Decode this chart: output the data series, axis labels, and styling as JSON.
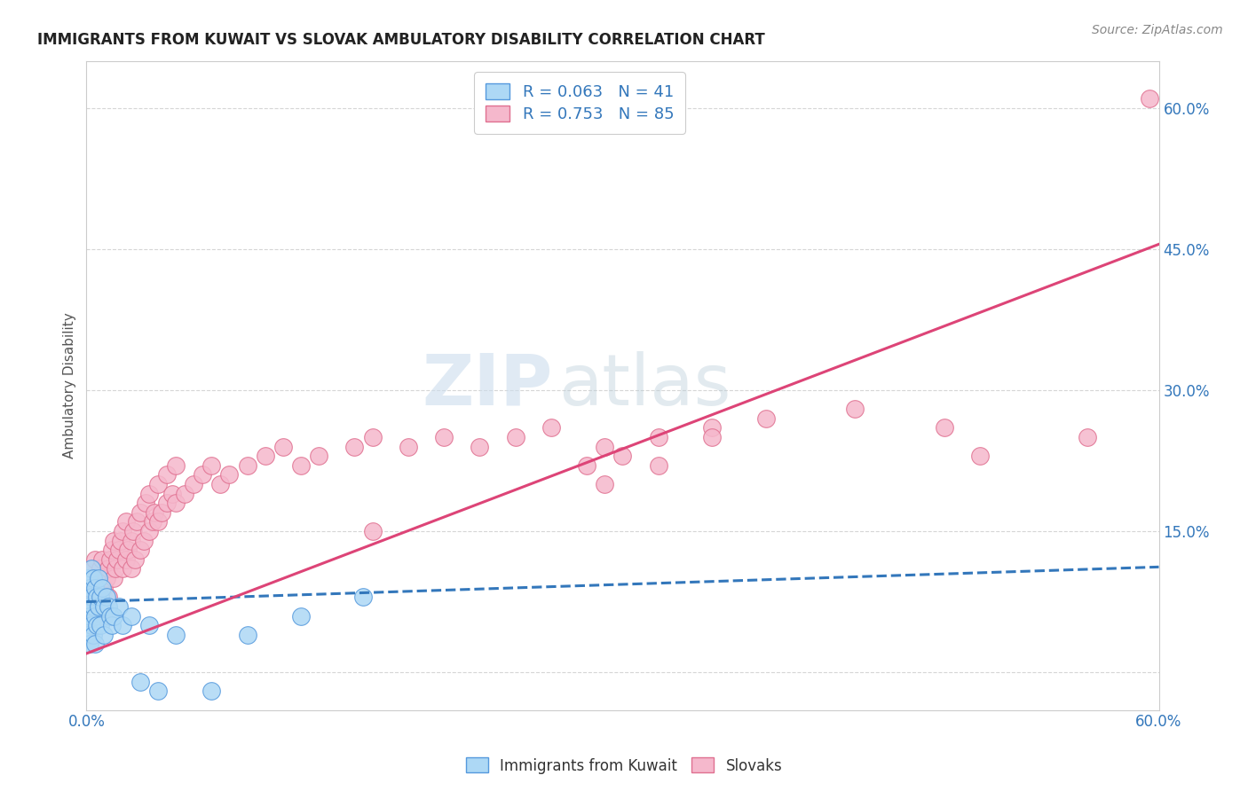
{
  "title": "IMMIGRANTS FROM KUWAIT VS SLOVAK AMBULATORY DISABILITY CORRELATION CHART",
  "source": "Source: ZipAtlas.com",
  "ylabel": "Ambulatory Disability",
  "xmin": 0.0,
  "xmax": 0.6,
  "ymin": -0.04,
  "ymax": 0.65,
  "ytick_vals": [
    0.0,
    0.15,
    0.3,
    0.45,
    0.6
  ],
  "ytick_labels": [
    "",
    "15.0%",
    "30.0%",
    "45.0%",
    "60.0%"
  ],
  "kuwait_color": "#add8f5",
  "kuwait_edge": "#5599dd",
  "slovak_color": "#f5b8cc",
  "slovak_edge": "#e07090",
  "line_kuwait_color": "#3377bb",
  "line_slovak_color": "#dd4477",
  "watermark_color": "#ccdded",
  "kuwait_line_x0": 0.0,
  "kuwait_line_y0": 0.075,
  "kuwait_line_x1": 0.6,
  "kuwait_line_y1": 0.112,
  "slovak_line_x0": 0.0,
  "slovak_line_y0": 0.02,
  "slovak_line_x1": 0.6,
  "slovak_line_y1": 0.455,
  "kuwait_points_x": [
    0.0005,
    0.001,
    0.001,
    0.001,
    0.002,
    0.002,
    0.002,
    0.003,
    0.003,
    0.003,
    0.004,
    0.004,
    0.004,
    0.005,
    0.005,
    0.005,
    0.006,
    0.006,
    0.007,
    0.007,
    0.008,
    0.008,
    0.009,
    0.01,
    0.01,
    0.011,
    0.012,
    0.013,
    0.014,
    0.015,
    0.018,
    0.02,
    0.025,
    0.03,
    0.035,
    0.04,
    0.05,
    0.07,
    0.09,
    0.12,
    0.155
  ],
  "kuwait_points_y": [
    0.07,
    0.1,
    0.07,
    0.04,
    0.09,
    0.06,
    0.03,
    0.11,
    0.08,
    0.05,
    0.1,
    0.07,
    0.04,
    0.09,
    0.06,
    0.03,
    0.08,
    0.05,
    0.1,
    0.07,
    0.08,
    0.05,
    0.09,
    0.07,
    0.04,
    0.08,
    0.07,
    0.06,
    0.05,
    0.06,
    0.07,
    0.05,
    0.06,
    -0.01,
    0.05,
    -0.02,
    0.04,
    -0.02,
    0.04,
    0.06,
    0.08
  ],
  "slovak_points_x": [
    0.001,
    0.002,
    0.003,
    0.003,
    0.004,
    0.005,
    0.005,
    0.006,
    0.007,
    0.007,
    0.008,
    0.008,
    0.009,
    0.01,
    0.01,
    0.011,
    0.012,
    0.012,
    0.013,
    0.014,
    0.015,
    0.015,
    0.016,
    0.017,
    0.018,
    0.019,
    0.02,
    0.02,
    0.022,
    0.022,
    0.023,
    0.025,
    0.025,
    0.026,
    0.027,
    0.028,
    0.03,
    0.03,
    0.032,
    0.033,
    0.035,
    0.035,
    0.037,
    0.038,
    0.04,
    0.04,
    0.042,
    0.045,
    0.045,
    0.048,
    0.05,
    0.05,
    0.055,
    0.06,
    0.065,
    0.07,
    0.075,
    0.08,
    0.09,
    0.1,
    0.11,
    0.12,
    0.13,
    0.15,
    0.16,
    0.18,
    0.2,
    0.22,
    0.24,
    0.26,
    0.29,
    0.32,
    0.35,
    0.38,
    0.28,
    0.3,
    0.35,
    0.29,
    0.32,
    0.16,
    0.43,
    0.48,
    0.5,
    0.56,
    0.595
  ],
  "slovak_points_y": [
    0.08,
    0.09,
    0.1,
    0.07,
    0.11,
    0.12,
    0.08,
    0.09,
    0.1,
    0.07,
    0.11,
    0.08,
    0.12,
    0.09,
    0.06,
    0.1,
    0.11,
    0.08,
    0.12,
    0.13,
    0.14,
    0.1,
    0.11,
    0.12,
    0.13,
    0.14,
    0.15,
    0.11,
    0.16,
    0.12,
    0.13,
    0.14,
    0.11,
    0.15,
    0.12,
    0.16,
    0.17,
    0.13,
    0.14,
    0.18,
    0.19,
    0.15,
    0.16,
    0.17,
    0.2,
    0.16,
    0.17,
    0.21,
    0.18,
    0.19,
    0.22,
    0.18,
    0.19,
    0.2,
    0.21,
    0.22,
    0.2,
    0.21,
    0.22,
    0.23,
    0.24,
    0.22,
    0.23,
    0.24,
    0.25,
    0.24,
    0.25,
    0.24,
    0.25,
    0.26,
    0.24,
    0.25,
    0.26,
    0.27,
    0.22,
    0.23,
    0.25,
    0.2,
    0.22,
    0.15,
    0.28,
    0.26,
    0.23,
    0.25,
    0.61
  ]
}
